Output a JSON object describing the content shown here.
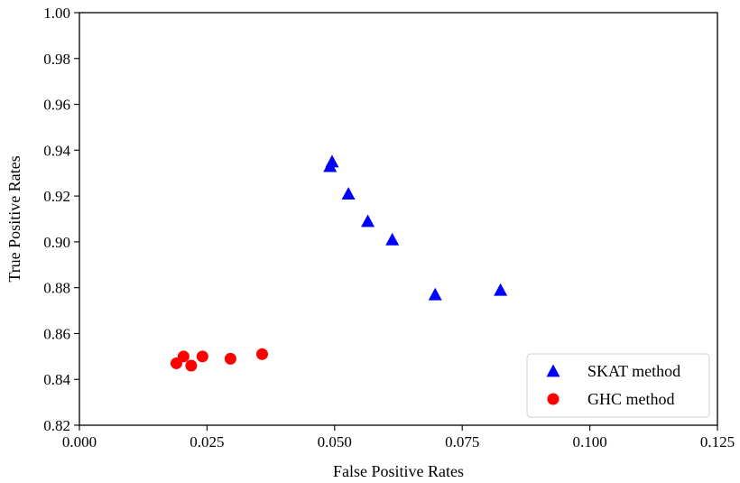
{
  "chart_data": {
    "type": "scatter",
    "xlabel": "False Positive Rates",
    "ylabel": "True Positive Rates",
    "xlim": [
      0.0,
      0.125
    ],
    "ylim": [
      0.82,
      1.0
    ],
    "xticks": [
      "0.000",
      "0.025",
      "0.050",
      "0.075",
      "0.100",
      "0.125"
    ],
    "yticks": [
      "0.82",
      "0.84",
      "0.86",
      "0.88",
      "0.90",
      "0.92",
      "0.94",
      "0.96",
      "0.98",
      "1.00"
    ],
    "grid": false,
    "legend_position": "bottom-right",
    "series": [
      {
        "name": "SKAT method",
        "marker": "triangle",
        "color": "#0000ff",
        "points": [
          {
            "x": 0.0491,
            "y": 0.933
          },
          {
            "x": 0.0495,
            "y": 0.935
          },
          {
            "x": 0.0527,
            "y": 0.921
          },
          {
            "x": 0.0565,
            "y": 0.909
          },
          {
            "x": 0.0613,
            "y": 0.901
          },
          {
            "x": 0.0697,
            "y": 0.877
          },
          {
            "x": 0.0825,
            "y": 0.879
          }
        ]
      },
      {
        "name": "GHC method",
        "marker": "circle",
        "color": "#ff0000",
        "points": [
          {
            "x": 0.019,
            "y": 0.847
          },
          {
            "x": 0.0204,
            "y": 0.85
          },
          {
            "x": 0.0219,
            "y": 0.846
          },
          {
            "x": 0.0241,
            "y": 0.85
          },
          {
            "x": 0.0296,
            "y": 0.849
          },
          {
            "x": 0.0358,
            "y": 0.851
          }
        ]
      }
    ]
  }
}
